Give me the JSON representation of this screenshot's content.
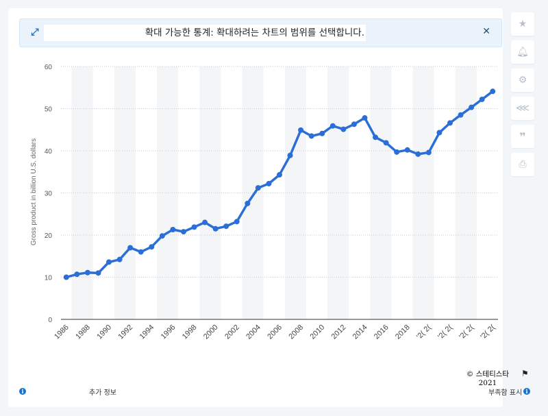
{
  "banner": {
    "message": "확대 가능한 통계: 확대하려는 차트의 범위를 선택합니다.",
    "expand_icon": "expand-icon",
    "close_icon": "close-icon"
  },
  "toolbar": [
    "star-icon",
    "bell-icon",
    "gear-icon",
    "share-icon",
    "quote-icon",
    "print-icon"
  ],
  "footer": {
    "copyright": "© 스테티스타 2021",
    "more_info": "추가 정보",
    "report": "부족함 표시"
  },
  "colors": {
    "line": "#2b6fd6",
    "grid": "#c6cdd6",
    "band": "#f4f5f7"
  },
  "chart_data": {
    "type": "line",
    "ylabel": "Gross product in billion U.S. dollars",
    "ylim": [
      0,
      60
    ],
    "yticks": [
      0,
      10,
      20,
      30,
      40,
      50,
      60
    ],
    "grid": true,
    "x": [
      1986,
      1987,
      1988,
      1989,
      1990,
      1991,
      1992,
      1993,
      1994,
      1995,
      1996,
      1997,
      1998,
      1999,
      2000,
      2001,
      2002,
      2003,
      2004,
      2005,
      2006,
      2007,
      2008,
      2009,
      2010,
      2011,
      2012,
      2013,
      2014,
      2015,
      2016,
      2017,
      2018,
      2019,
      2020,
      2021,
      2022,
      2023,
      2024,
      2025,
      2026
    ],
    "xtick_labels": [
      "1986",
      "1988",
      "1990",
      "1992",
      "1994",
      "1996",
      "1998",
      "2000",
      "2002",
      "2004",
      "2006",
      "2008",
      "2010",
      "2012",
      "2014",
      "2016",
      "2018",
      "2020",
      "2022",
      "2024",
      "2026"
    ],
    "xtick_display": [
      "1986",
      "1988",
      "1990",
      "1992",
      "1994",
      "1996",
      "1998",
      "2000",
      "2002",
      "2004",
      "2006",
      "2008",
      "2010",
      "2012",
      "2014",
      "2016",
      "2018",
      "'2( 2(",
      "'2( 2(",
      "'2( 2(",
      "'2( 2("
    ],
    "series": [
      {
        "values": [
          10.0,
          10.7,
          11.1,
          11.0,
          13.6,
          14.2,
          17.0,
          16.0,
          17.2,
          19.8,
          21.3,
          20.8,
          21.9,
          23.0,
          21.5,
          22.1,
          23.2,
          27.5,
          31.2,
          32.2,
          34.3,
          38.9,
          44.9,
          43.5,
          44.1,
          45.9,
          45.1,
          46.3,
          47.8,
          43.2,
          41.9,
          39.7,
          40.2,
          39.2,
          39.6,
          44.3,
          46.6,
          48.5,
          50.3,
          52.2,
          54.1
        ]
      }
    ]
  }
}
